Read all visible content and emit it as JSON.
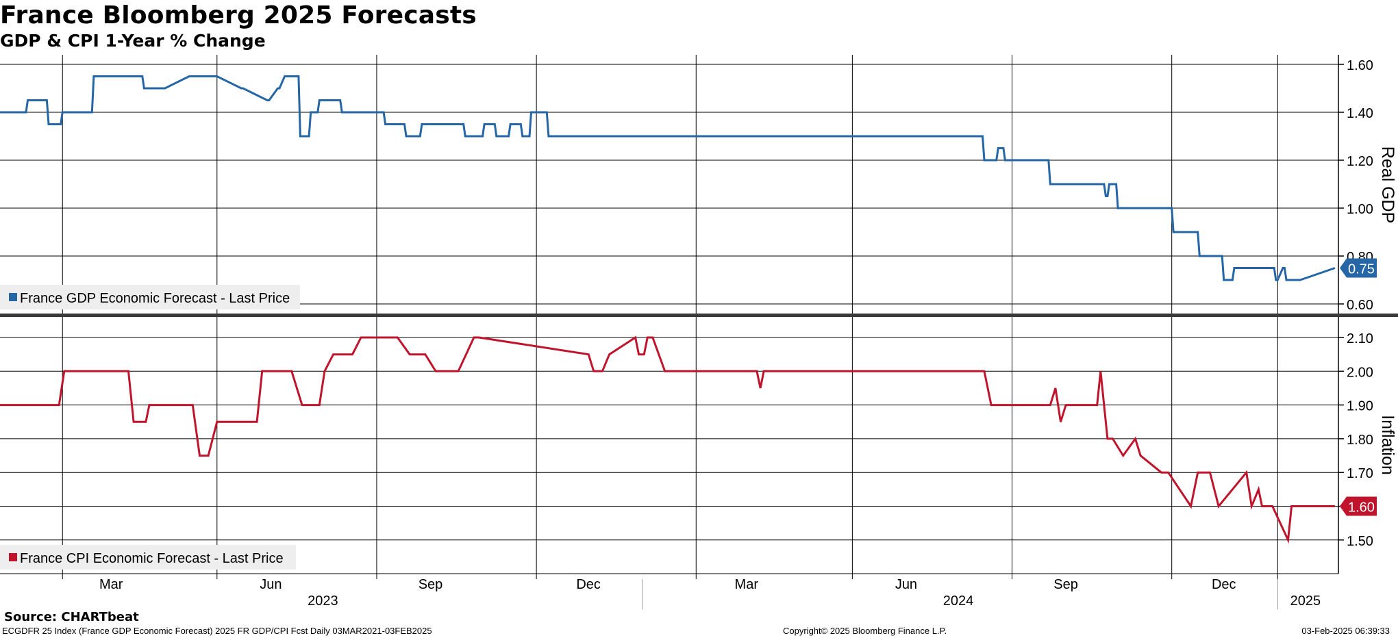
{
  "header": {
    "title": "France Bloomberg 2025 Forecasts",
    "subtitle": "GDP & CPI 1-Year % Change"
  },
  "footer": {
    "source": "Source: CHARTbeat",
    "left": "ECGDFR 25 Index (France GDP Economic Forecast) 2025 FR GDP/CPI Fcst  Daily 03MAR2021-03FEB2025",
    "center": "Copyright© 2025 Bloomberg Finance L.P.",
    "right": "03-Feb-2025 06:39:33"
  },
  "colors": {
    "gdp": "#2566a6",
    "cpi": "#c0142c",
    "grid": "#000000",
    "legend_bg": "#eeeeee"
  },
  "chart_data": [
    {
      "type": "line",
      "panel": "top",
      "ylabel": "Real GDP",
      "ylim": [
        0.55,
        1.65
      ],
      "yticks": [
        "1.60",
        "1.40",
        "1.20",
        "1.00",
        "0.80",
        "0.60"
      ],
      "last_value_label": "0.75",
      "legend": "France GDP Economic Forecast - Last Price",
      "series": [
        {
          "name": "France GDP Economic Forecast - Last Price",
          "x": [
            "2022-12-27",
            "2023-01-11",
            "2023-01-12",
            "2023-01-23",
            "2023-01-24",
            "2023-01-31",
            "2023-02-01",
            "2023-02-18",
            "2023-02-19",
            "2023-03-19",
            "2023-03-20",
            "2023-04-01",
            "2023-04-15",
            "2023-05-01",
            "2023-05-15",
            "2023-05-16",
            "2023-05-30",
            "2023-05-31",
            "2023-06-05",
            "2023-06-06",
            "2023-06-09",
            "2023-06-10",
            "2023-06-17",
            "2023-06-18",
            "2023-06-23",
            "2023-06-24",
            "2023-06-28",
            "2023-06-29",
            "2023-07-11",
            "2023-07-12",
            "2023-08-05",
            "2023-08-06",
            "2023-08-17",
            "2023-08-18",
            "2023-08-26",
            "2023-08-27",
            "2023-09-20",
            "2023-09-21",
            "2023-10-01",
            "2023-10-02",
            "2023-10-08",
            "2023-10-09",
            "2023-10-16",
            "2023-10-17",
            "2023-10-23",
            "2023-10-24",
            "2023-10-28",
            "2023-10-29",
            "2023-11-07",
            "2023-11-08",
            "2023-11-10",
            "2023-11-11",
            "2023-11-14",
            "2023-11-15",
            "2023-11-17",
            "2023-11-18",
            "2023-11-20",
            "2023-11-21",
            "2024-07-15",
            "2024-07-16",
            "2024-07-23",
            "2024-07-24",
            "2024-07-27",
            "2024-07-28",
            "2024-08-22",
            "2024-08-23",
            "2024-09-23",
            "2024-09-24",
            "2024-09-25",
            "2024-09-26",
            "2024-09-30",
            "2024-10-01",
            "2024-11-01",
            "2024-11-02",
            "2024-11-16",
            "2024-11-17",
            "2024-11-30",
            "2024-12-01",
            "2024-12-06",
            "2024-12-07",
            "2024-12-13",
            "2024-12-14",
            "2024-12-30",
            "2024-12-31",
            "2025-01-01",
            "2025-01-04",
            "2025-01-05",
            "2025-01-06",
            "2025-01-07",
            "2025-01-13",
            "2025-01-14",
            "2025-02-03"
          ],
          "values": [
            1.4,
            1.4,
            1.45,
            1.45,
            1.35,
            1.35,
            1.4,
            1.4,
            1.55,
            1.55,
            1.5,
            1.5,
            1.55,
            1.55,
            1.5,
            1.5,
            1.45,
            1.45,
            1.5,
            1.5,
            1.55,
            1.55,
            1.55,
            1.3,
            1.3,
            1.4,
            1.4,
            1.45,
            1.45,
            1.4,
            1.4,
            1.35,
            1.35,
            1.3,
            1.3,
            1.35,
            1.35,
            1.3,
            1.3,
            1.35,
            1.35,
            1.3,
            1.3,
            1.35,
            1.35,
            1.3,
            1.3,
            1.4,
            1.4,
            1.3,
            1.3,
            1.3,
            1.3,
            1.3,
            1.3,
            1.3,
            1.3,
            1.3,
            1.3,
            1.2,
            1.2,
            1.25,
            1.25,
            1.2,
            1.2,
            1.1,
            1.1,
            1.05,
            1.05,
            1.1,
            1.1,
            1.0,
            1.0,
            0.9,
            0.9,
            0.8,
            0.8,
            0.7,
            0.7,
            0.75,
            0.75,
            0.75,
            0.75,
            0.7,
            0.7,
            0.75,
            0.75,
            0.7,
            0.7,
            0.7,
            0.7,
            0.75
          ]
        }
      ]
    },
    {
      "type": "line",
      "panel": "bottom",
      "ylabel": "Inflation",
      "ylim": [
        1.4,
        2.17
      ],
      "yticks": [
        "2.10",
        "2.00",
        "1.90",
        "1.80",
        "1.70",
        "1.60",
        "1.50"
      ],
      "last_value_label": "1.60",
      "legend": "France CPI Economic Forecast - Last Price",
      "series": [
        {
          "name": "France CPI Economic Forecast - Last Price",
          "x": [
            "2022-12-27",
            "2023-01-30",
            "2023-02-02",
            "2023-03-11",
            "2023-03-14",
            "2023-03-21",
            "2023-03-23",
            "2023-04-17",
            "2023-04-21",
            "2023-04-26",
            "2023-05-01",
            "2023-05-24",
            "2023-05-27",
            "2023-06-13",
            "2023-06-19",
            "2023-06-29",
            "2023-07-02",
            "2023-07-07",
            "2023-07-18",
            "2023-07-23",
            "2023-08-03",
            "2023-08-13",
            "2023-08-20",
            "2023-08-29",
            "2023-09-04",
            "2023-09-17",
            "2023-09-26",
            "2023-09-29",
            "2023-12-01",
            "2023-12-04",
            "2023-12-09",
            "2023-12-13",
            "2023-12-28",
            "2023-12-30",
            "2024-01-02",
            "2024-01-04",
            "2024-01-07",
            "2024-01-14",
            "2024-03-07",
            "2024-03-09",
            "2024-03-11",
            "2024-07-16",
            "2024-07-20",
            "2024-08-23",
            "2024-08-26",
            "2024-08-29",
            "2024-09-01",
            "2024-09-19",
            "2024-09-21",
            "2024-09-25",
            "2024-09-28",
            "2024-10-04",
            "2024-10-11",
            "2024-10-14",
            "2024-10-26",
            "2024-10-30",
            "2024-11-12",
            "2024-11-16",
            "2024-11-23",
            "2024-11-28",
            "2024-12-14",
            "2024-12-17",
            "2024-12-21",
            "2024-12-23",
            "2024-12-29",
            "2025-01-07",
            "2025-01-09",
            "2025-01-11",
            "2025-01-24",
            "2025-02-03"
          ],
          "values": [
            1.9,
            1.9,
            2.0,
            2.0,
            1.85,
            1.85,
            1.9,
            1.9,
            1.75,
            1.75,
            1.85,
            1.85,
            2.0,
            2.0,
            1.9,
            1.9,
            2.0,
            2.05,
            2.05,
            2.1,
            2.1,
            2.1,
            2.05,
            2.05,
            2.0,
            2.0,
            2.1,
            2.1,
            2.05,
            2.0,
            2.0,
            2.05,
            2.1,
            2.05,
            2.05,
            2.1,
            2.1,
            2.0,
            2.0,
            1.95,
            2.0,
            2.0,
            1.9,
            1.9,
            1.95,
            1.85,
            1.9,
            1.9,
            2.0,
            1.8,
            1.8,
            1.75,
            1.8,
            1.75,
            1.7,
            1.7,
            1.6,
            1.7,
            1.7,
            1.6,
            1.7,
            1.6,
            1.65,
            1.6,
            1.6,
            1.5,
            1.6,
            1.6,
            1.6,
            1.6
          ]
        }
      ]
    }
  ],
  "x_axis": {
    "months": [
      {
        "label": "Mar",
        "date": "2023-03-01"
      },
      {
        "label": "Jun",
        "date": "2023-06-01"
      },
      {
        "label": "Sep",
        "date": "2023-09-01"
      },
      {
        "label": "Dec",
        "date": "2023-12-01"
      },
      {
        "label": "Mar",
        "date": "2024-03-01"
      },
      {
        "label": "Jun",
        "date": "2024-06-01"
      },
      {
        "label": "Sep",
        "date": "2024-09-01"
      },
      {
        "label": "Dec",
        "date": "2024-12-01"
      }
    ],
    "years": [
      {
        "label": "2023",
        "date": "2023-07-01"
      },
      {
        "label": "2024",
        "date": "2024-07-01"
      },
      {
        "label": "2025",
        "date": "2025-01-17"
      }
    ],
    "gridlines": [
      "2023-02-01",
      "2023-05-01",
      "2023-08-01",
      "2023-11-01",
      "2024-02-01",
      "2024-05-01",
      "2024-08-01",
      "2024-11-01",
      "2025-01-01"
    ],
    "year_separators": [
      "2024-01-01",
      "2025-01-01"
    ]
  }
}
